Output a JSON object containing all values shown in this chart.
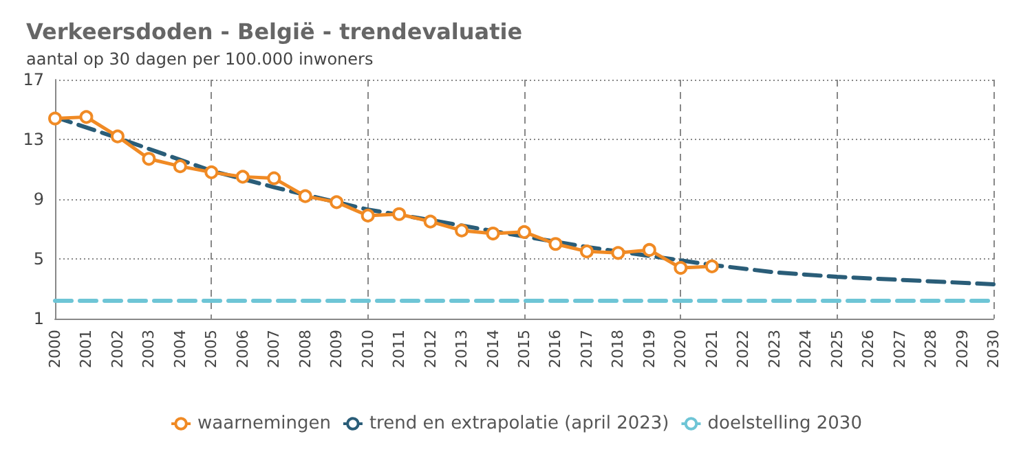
{
  "chart_data": {
    "type": "line",
    "title": "Verkeersdoden - België - trendevaluatie",
    "subtitle": "aantal op 30 dagen per 100.000 inwoners",
    "categories": [
      "2000",
      "2001",
      "2002",
      "2003",
      "2004",
      "2005",
      "2006",
      "2007",
      "2008",
      "2009",
      "2010",
      "2011",
      "2012",
      "2013",
      "2014",
      "2015",
      "2016",
      "2017",
      "2018",
      "2019",
      "2020",
      "2021",
      "2022",
      "2023",
      "2024",
      "2025",
      "2026",
      "2027",
      "2028",
      "2029",
      "2030"
    ],
    "series": [
      {
        "name": "waarnemingen",
        "color": "#f08a24",
        "marker": "circle",
        "line_style": "solid",
        "values": [
          14.4,
          14.5,
          13.2,
          11.7,
          11.2,
          10.8,
          10.5,
          10.4,
          9.2,
          8.8,
          7.9,
          8.0,
          7.5,
          6.9,
          6.7,
          6.8,
          6.0,
          5.5,
          5.4,
          5.6,
          4.4,
          4.5,
          null,
          null,
          null,
          null,
          null,
          null,
          null,
          null,
          null
        ]
      },
      {
        "name": "trend en extrapolatie (april 2023)",
        "color": "#2a5d78",
        "marker": "none",
        "line_style": "dashed",
        "values": [
          14.5,
          null,
          13.1,
          null,
          null,
          10.9,
          null,
          9.8,
          null,
          null,
          8.3,
          null,
          7.6,
          null,
          null,
          6.5,
          null,
          5.8,
          null,
          null,
          4.9,
          4.6,
          null,
          4.1,
          null,
          3.8,
          null,
          null,
          null,
          null,
          3.3
        ]
      },
      {
        "name": "doelstelling 2030",
        "color": "#6ec5d6",
        "marker": "none",
        "line_style": "dashed",
        "values": [
          2.2,
          2.2,
          2.2,
          2.2,
          2.2,
          2.2,
          2.2,
          2.2,
          2.2,
          2.2,
          2.2,
          2.2,
          2.2,
          2.2,
          2.2,
          2.2,
          2.2,
          2.2,
          2.2,
          2.2,
          2.2,
          2.2,
          2.2,
          2.2,
          2.2,
          2.2,
          2.2,
          2.2,
          2.2,
          2.2,
          2.2
        ]
      }
    ],
    "ylim": [
      1,
      17
    ],
    "yticks": [
      1,
      5,
      9,
      13,
      17
    ],
    "grid": true,
    "legend": "bottom"
  }
}
